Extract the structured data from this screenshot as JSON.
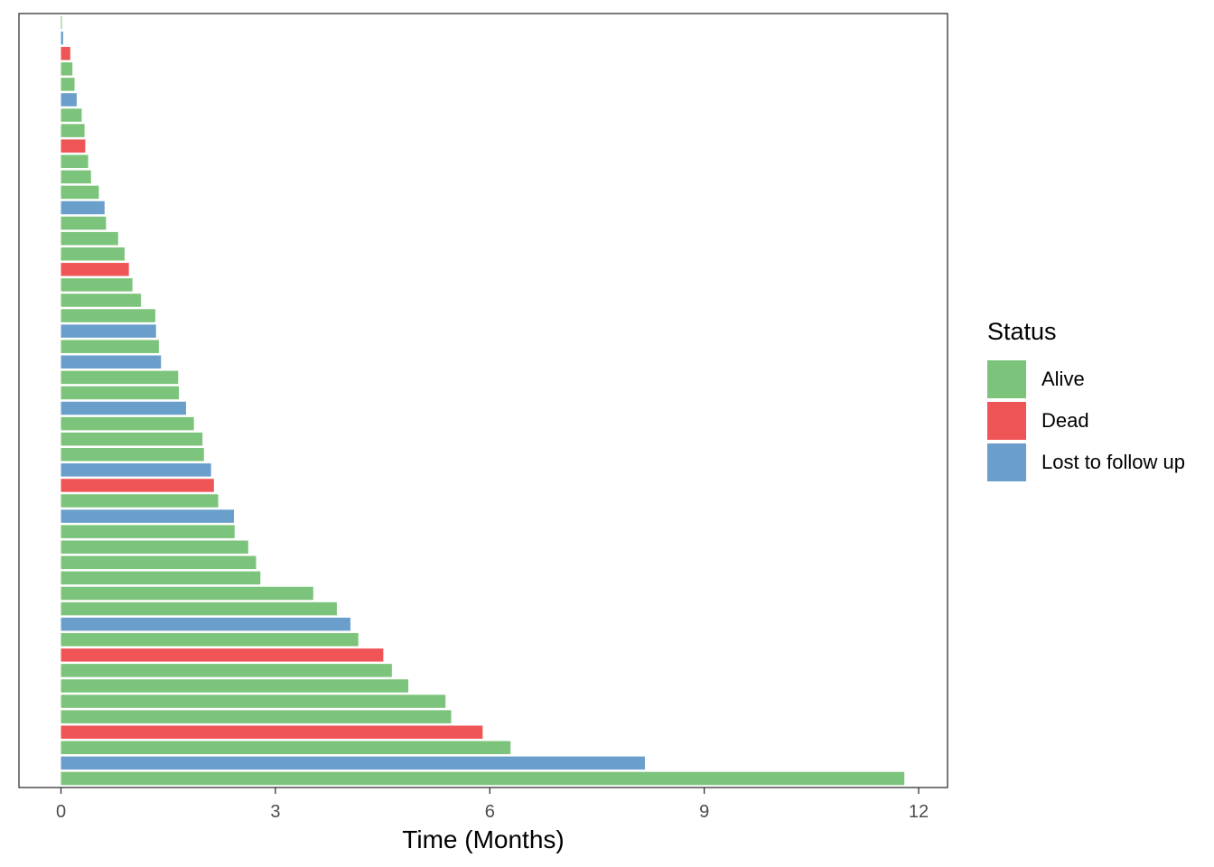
{
  "chart_data": {
    "type": "bar",
    "orientation": "horizontal",
    "xlabel": "Time (Months)",
    "ylabel": "",
    "xlim": [
      0,
      12
    ],
    "xticks": [
      0,
      3,
      6,
      9,
      12
    ],
    "grid": false,
    "legend": {
      "title": "Status",
      "placement": "right",
      "items": [
        {
          "label": "Alive",
          "color": "#7CC47C"
        },
        {
          "label": "Dead",
          "color": "#EF5557"
        },
        {
          "label": "Lost to follow up",
          "color": "#6A9FCC"
        }
      ]
    },
    "bars": [
      {
        "value": 11.8,
        "status": "Alive"
      },
      {
        "value": 8.17,
        "status": "Lost to follow up"
      },
      {
        "value": 6.29,
        "status": "Alive"
      },
      {
        "value": 5.9,
        "status": "Dead"
      },
      {
        "value": 5.46,
        "status": "Alive"
      },
      {
        "value": 5.38,
        "status": "Alive"
      },
      {
        "value": 4.86,
        "status": "Alive"
      },
      {
        "value": 4.63,
        "status": "Alive"
      },
      {
        "value": 4.51,
        "status": "Dead"
      },
      {
        "value": 4.16,
        "status": "Alive"
      },
      {
        "value": 4.05,
        "status": "Lost to follow up"
      },
      {
        "value": 3.86,
        "status": "Alive"
      },
      {
        "value": 3.53,
        "status": "Alive"
      },
      {
        "value": 2.79,
        "status": "Alive"
      },
      {
        "value": 2.73,
        "status": "Alive"
      },
      {
        "value": 2.62,
        "status": "Alive"
      },
      {
        "value": 2.43,
        "status": "Alive"
      },
      {
        "value": 2.42,
        "status": "Lost to follow up"
      },
      {
        "value": 2.2,
        "status": "Alive"
      },
      {
        "value": 2.14,
        "status": "Dead"
      },
      {
        "value": 2.1,
        "status": "Lost to follow up"
      },
      {
        "value": 2.0,
        "status": "Alive"
      },
      {
        "value": 1.98,
        "status": "Alive"
      },
      {
        "value": 1.86,
        "status": "Alive"
      },
      {
        "value": 1.75,
        "status": "Lost to follow up"
      },
      {
        "value": 1.65,
        "status": "Alive"
      },
      {
        "value": 1.64,
        "status": "Alive"
      },
      {
        "value": 1.4,
        "status": "Lost to follow up"
      },
      {
        "value": 1.37,
        "status": "Alive"
      },
      {
        "value": 1.33,
        "status": "Lost to follow up"
      },
      {
        "value": 1.32,
        "status": "Alive"
      },
      {
        "value": 1.12,
        "status": "Alive"
      },
      {
        "value": 1.0,
        "status": "Alive"
      },
      {
        "value": 0.95,
        "status": "Dead"
      },
      {
        "value": 0.89,
        "status": "Alive"
      },
      {
        "value": 0.8,
        "status": "Alive"
      },
      {
        "value": 0.63,
        "status": "Alive"
      },
      {
        "value": 0.61,
        "status": "Lost to follow up"
      },
      {
        "value": 0.53,
        "status": "Alive"
      },
      {
        "value": 0.42,
        "status": "Alive"
      },
      {
        "value": 0.38,
        "status": "Alive"
      },
      {
        "value": 0.34,
        "status": "Dead"
      },
      {
        "value": 0.33,
        "status": "Alive"
      },
      {
        "value": 0.29,
        "status": "Alive"
      },
      {
        "value": 0.22,
        "status": "Lost to follow up"
      },
      {
        "value": 0.19,
        "status": "Alive"
      },
      {
        "value": 0.16,
        "status": "Alive"
      },
      {
        "value": 0.13,
        "status": "Dead"
      },
      {
        "value": 0.03,
        "status": "Lost to follow up"
      },
      {
        "value": 0.01,
        "status": "Alive"
      }
    ]
  }
}
